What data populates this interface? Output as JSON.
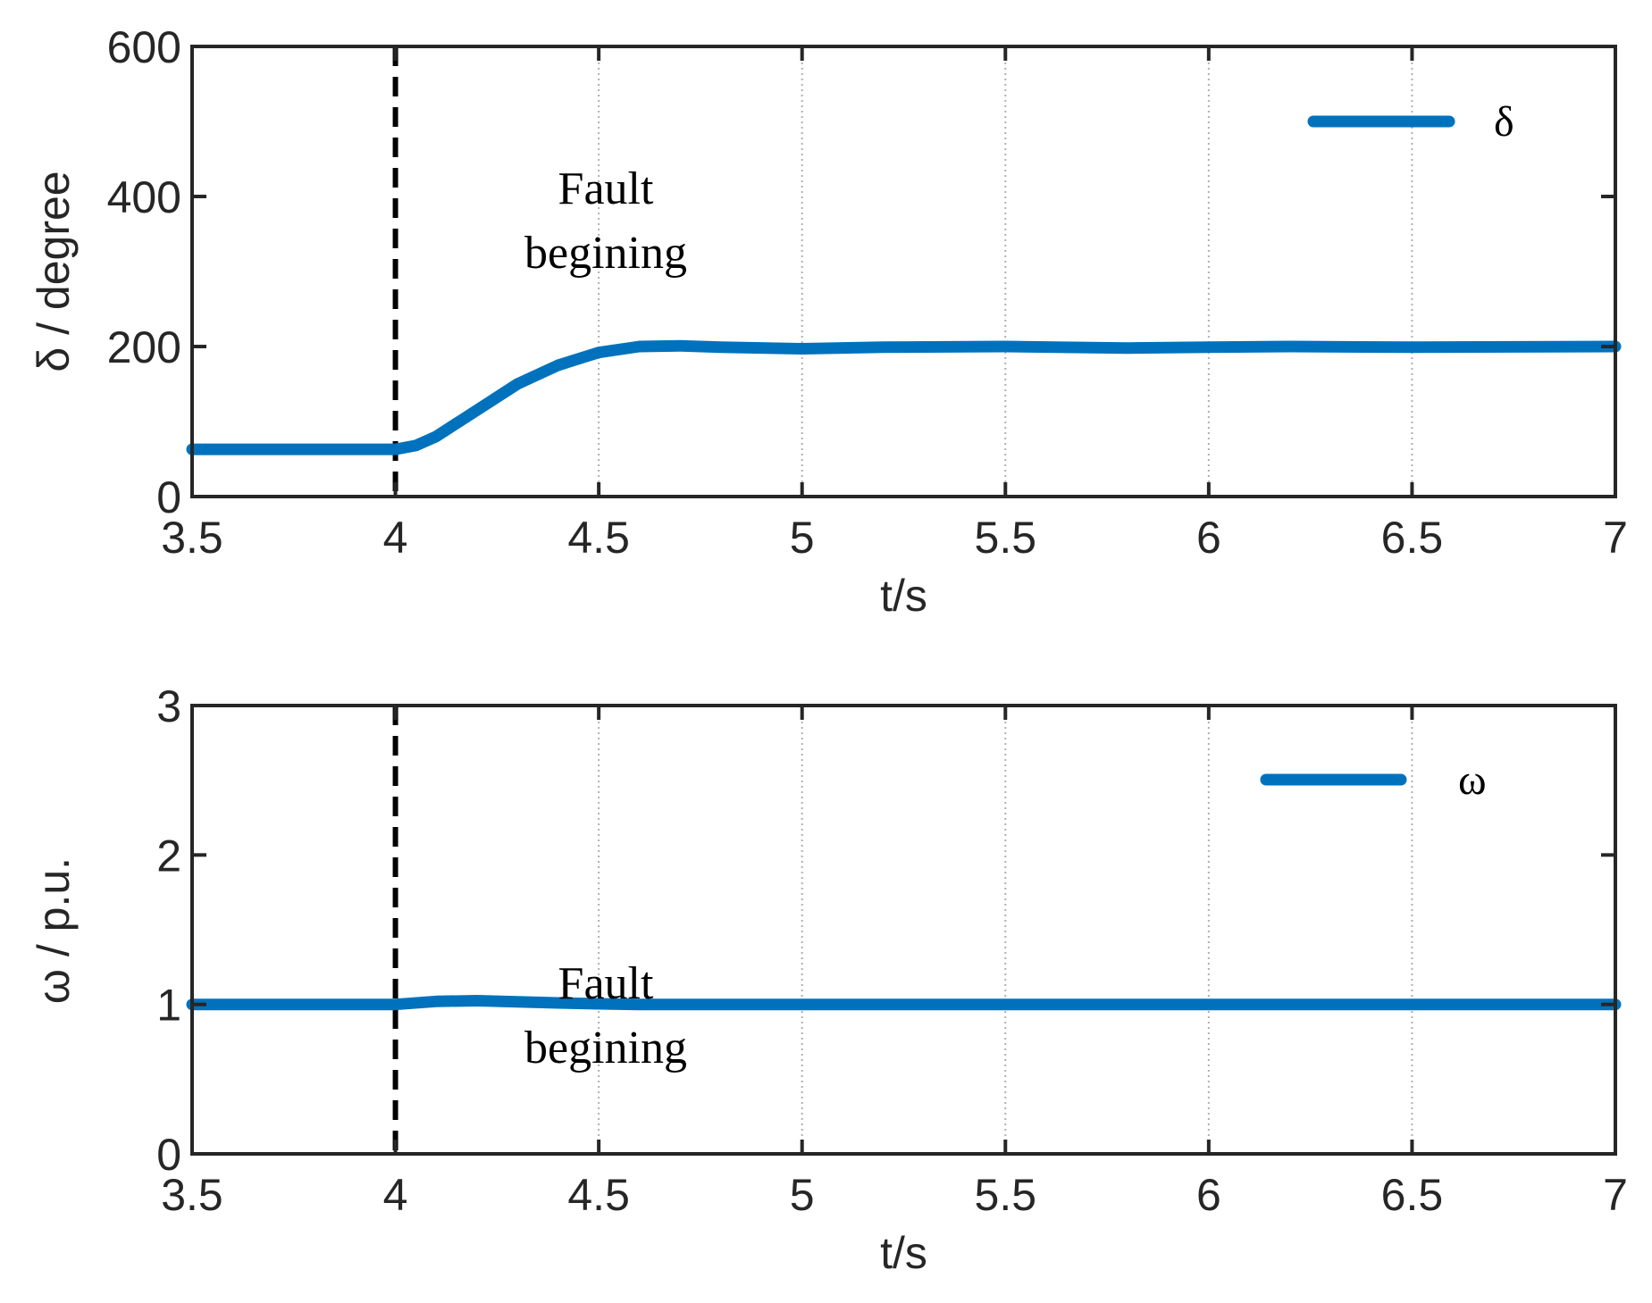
{
  "chart_data": [
    {
      "type": "line",
      "xlabel": "t/s",
      "ylabel": "δ / degree",
      "xlim": [
        3.5,
        7
      ],
      "ylim": [
        0,
        600
      ],
      "xticks": [
        "3.5",
        "4",
        "4.5",
        "5",
        "5.5",
        "6",
        "6.5",
        "7"
      ],
      "yticks": [
        "0",
        "200",
        "400",
        "600"
      ],
      "grid": "dotted vertical",
      "legend_position": "top-right",
      "marker_line_x": 4,
      "annotation": [
        "Fault",
        "begining"
      ],
      "annotation_position": {
        "x": 4.5,
        "y": 200
      },
      "series": [
        {
          "name": "δ",
          "color": "#0072BD",
          "x": [
            3.5,
            3.9,
            4.0,
            4.05,
            4.1,
            4.2,
            4.3,
            4.4,
            4.5,
            4.6,
            4.7,
            4.8,
            5.0,
            5.2,
            5.5,
            5.8,
            6.0,
            6.2,
            6.5,
            7.0
          ],
          "y": [
            63,
            63,
            63,
            68,
            80,
            115,
            150,
            175,
            192,
            200,
            201,
            199,
            197,
            199,
            200,
            198,
            199,
            200,
            199,
            200
          ]
        }
      ]
    },
    {
      "type": "line",
      "xlabel": "t/s",
      "ylabel": "ω / p.u.",
      "xlim": [
        3.5,
        7
      ],
      "ylim": [
        0,
        3
      ],
      "xticks": [
        "3.5",
        "4",
        "4.5",
        "5",
        "5.5",
        "6",
        "6.5",
        "7"
      ],
      "yticks": [
        "0",
        "1",
        "2",
        "3"
      ],
      "grid": "dotted vertical",
      "legend_position": "top-right",
      "marker_line_x": 4,
      "annotation": [
        "Fault",
        "begining"
      ],
      "annotation_position": {
        "x": 4.5,
        "y": 0.5
      },
      "series": [
        {
          "name": "ω",
          "color": "#0072BD",
          "x": [
            3.5,
            3.9,
            4.0,
            4.1,
            4.2,
            4.3,
            4.4,
            4.5,
            4.6,
            5.0,
            5.5,
            6.0,
            6.5,
            7.0
          ],
          "y": [
            1.0,
            1.0,
            1.0,
            1.02,
            1.025,
            1.018,
            1.01,
            1.004,
            1.0,
            1.0,
            1.0,
            1.0,
            1.0,
            1.0
          ]
        }
      ]
    }
  ]
}
